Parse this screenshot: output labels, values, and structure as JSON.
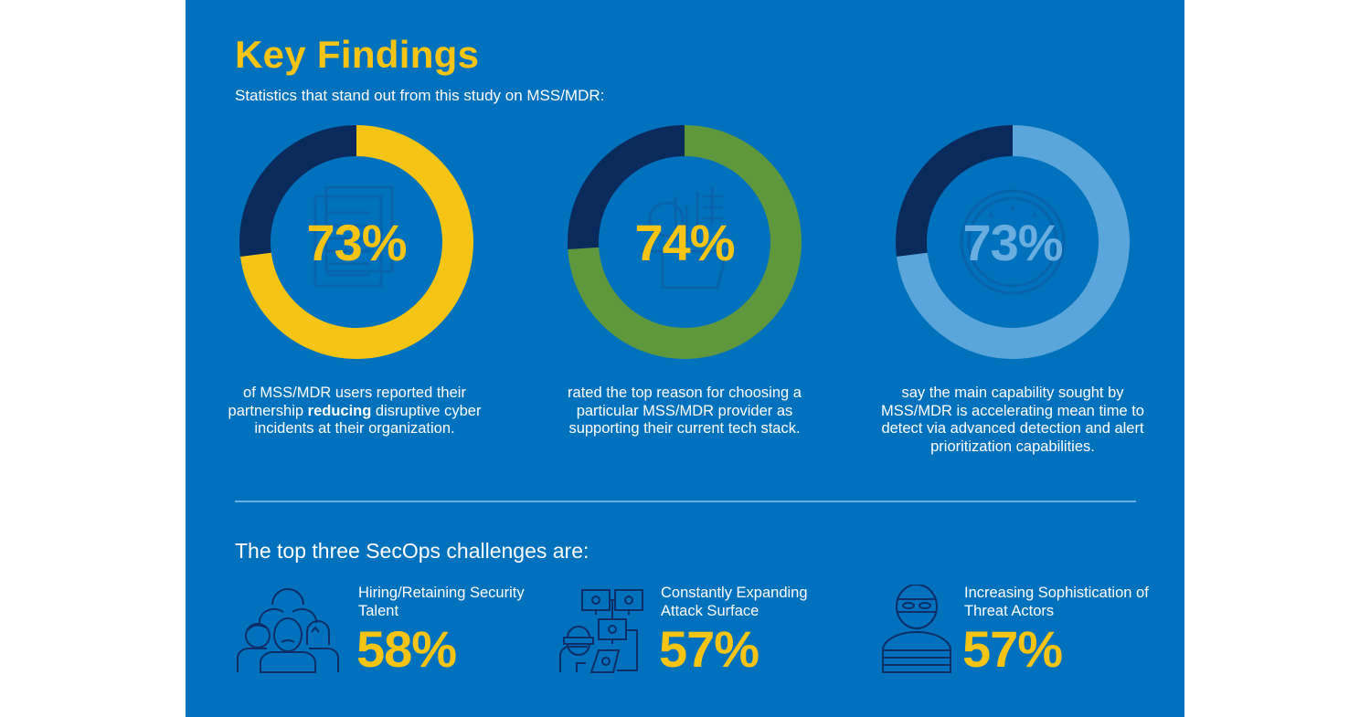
{
  "header": {
    "title": "Key Findings",
    "subtitle": "Statistics that stand out from this study on MSS/MDR:"
  },
  "colors": {
    "background": "#0071bc",
    "remainder": "#0b2a5c",
    "accent_yellow": "#f6c414",
    "accent_green": "#5f983c",
    "accent_lightblue": "#5aa5d9",
    "icon_line": "#163a75"
  },
  "findings": [
    {
      "value_label": "73%",
      "icon": "document-stack-icon",
      "desc_before": "of MSS/MDR users reported their partnership ",
      "desc_bold": "reducing",
      "desc_after": " disruptive cyber incidents at their organization."
    },
    {
      "value_label": "74%",
      "icon": "tech-stack-icon",
      "desc_before": "rated the top reason for choosing a particular MSS/MDR provider as supporting their current tech stack.",
      "desc_bold": "",
      "desc_after": ""
    },
    {
      "value_label": "73%",
      "icon": "speedometer-icon",
      "desc_before": "say the main capability sought by MSS/MDR is accelerating mean time to detect via advanced detection and alert prioritization capabilities.",
      "desc_bold": "",
      "desc_after": ""
    }
  ],
  "challenges": {
    "heading": "The top three SecOps challenges are:",
    "items": [
      {
        "label": "Hiring/Retaining Security Talent",
        "value": "58%",
        "icon": "people-group-icon"
      },
      {
        "label": "Constantly Expanding Attack Surface",
        "value": "57%",
        "icon": "network-bugs-icon"
      },
      {
        "label": "Increasing Sophistication of Threat Actors",
        "value": "57%",
        "icon": "masked-thief-icon"
      }
    ]
  },
  "chart_data": {
    "type": "pie",
    "title": "Key Findings",
    "subtitle": "Statistics that stand out from this study on MSS/MDR:",
    "donuts": [
      {
        "name": "Reduced disruptive cyber incidents",
        "value": 73,
        "remainder": 27,
        "unit": "%",
        "color": "#f6c414"
      },
      {
        "name": "Top reason: supporting current tech stack",
        "value": 74,
        "remainder": 26,
        "unit": "%",
        "color": "#5f983c"
      },
      {
        "name": "Main capability: accelerating mean time to detect",
        "value": 73,
        "remainder": 27,
        "unit": "%",
        "color": "#5aa5d9"
      }
    ],
    "challenges": [
      {
        "name": "Hiring/Retaining Security Talent",
        "value": 58,
        "unit": "%"
      },
      {
        "name": "Constantly Expanding Attack Surface",
        "value": 57,
        "unit": "%"
      },
      {
        "name": "Increasing Sophistication of Threat Actors",
        "value": 57,
        "unit": "%"
      }
    ]
  }
}
